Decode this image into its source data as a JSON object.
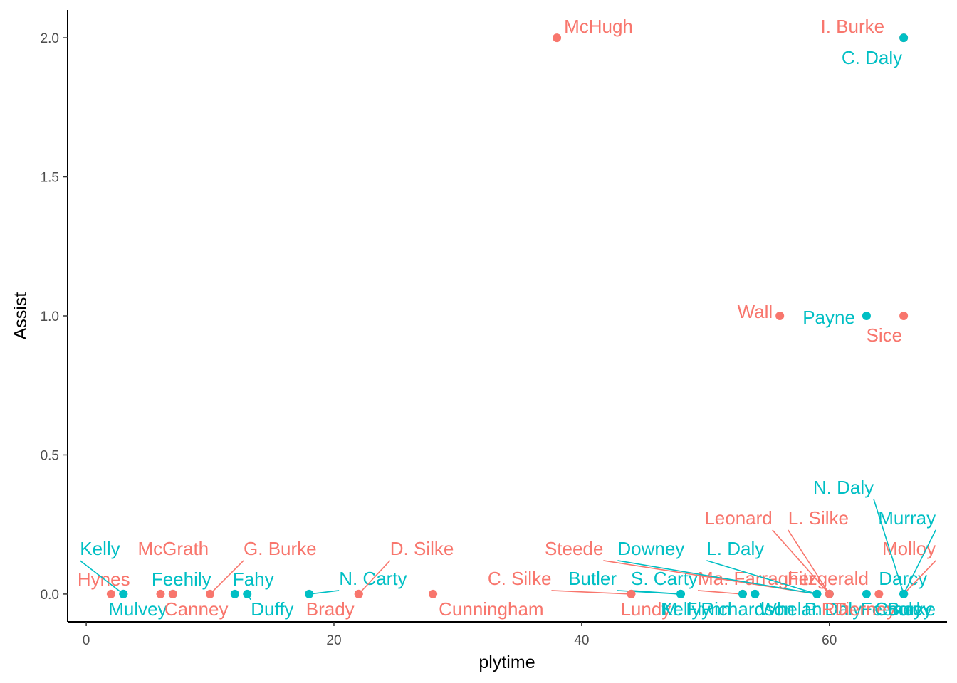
{
  "chart_data": {
    "type": "scatter",
    "xlabel": "plytime",
    "ylabel": "Assist",
    "xlim": [
      -1.5,
      69.5
    ],
    "ylim": [
      -0.1,
      2.1
    ],
    "xticks": [
      0,
      20,
      40,
      60
    ],
    "yticks": [
      0.0,
      0.5,
      1.0,
      1.5,
      2.0
    ],
    "xtick_labels": [
      "0",
      "20",
      "40",
      "60"
    ],
    "ytick_labels": [
      "0.0",
      "0.5",
      "1.0",
      "1.5",
      "2.0"
    ],
    "grid": false,
    "legend": "none",
    "colors": [
      "#F8766D",
      "#00BFC4"
    ],
    "points": [
      {
        "name": "McHugh",
        "x": 38,
        "y": 2,
        "g": 0
      },
      {
        "name": "I. Burke",
        "x": 66,
        "y": 2,
        "g": 0
      },
      {
        "name": "C. Daly",
        "x": 66,
        "y": 2,
        "g": 1
      },
      {
        "name": "Wall",
        "x": 56,
        "y": 1,
        "g": 0
      },
      {
        "name": "Payne",
        "x": 63,
        "y": 1,
        "g": 1
      },
      {
        "name": "Sice",
        "x": 66,
        "y": 1,
        "g": 0
      },
      {
        "name": "Hynes",
        "x": 2,
        "y": 0,
        "g": 0
      },
      {
        "name": "Kelly",
        "x": 3,
        "y": 0,
        "g": 1
      },
      {
        "name": "Mulvey",
        "x": 3,
        "y": 0,
        "g": 1
      },
      {
        "name": "McGrath",
        "x": 6,
        "y": 0,
        "g": 0
      },
      {
        "name": "Feehily",
        "x": 7,
        "y": 0,
        "g": 1
      },
      {
        "name": "Canney",
        "x": 7,
        "y": 0,
        "g": 0
      },
      {
        "name": "G. Burke",
        "x": 10,
        "y": 0,
        "g": 0
      },
      {
        "name": "Fahy",
        "x": 12,
        "y": 0,
        "g": 1
      },
      {
        "name": "Duffy",
        "x": 13,
        "y": 0,
        "g": 1
      },
      {
        "name": "N. Carty",
        "x": 18,
        "y": 0,
        "g": 1
      },
      {
        "name": "Brady",
        "x": 22,
        "y": 0,
        "g": 0
      },
      {
        "name": "D. Silke",
        "x": 22,
        "y": 0,
        "g": 0
      },
      {
        "name": "Cunningham",
        "x": 28,
        "y": 0,
        "g": 0
      },
      {
        "name": "C. Silke",
        "x": 44,
        "y": 0,
        "g": 0
      },
      {
        "name": "Lundy",
        "x": 44,
        "y": 0,
        "g": 0
      },
      {
        "name": "Butler",
        "x": 48,
        "y": 0,
        "g": 1
      },
      {
        "name": "S. Carty",
        "x": 48,
        "y": 0,
        "g": 1
      },
      {
        "name": "Kelly",
        "x": 48,
        "y": 0,
        "g": 1
      },
      {
        "name": "Ma. Farragher",
        "x": 53,
        "y": 0,
        "g": 0
      },
      {
        "name": "M.",
        "x": 53,
        "y": 0,
        "g": 1
      },
      {
        "name": "Flynn",
        "x": 54,
        "y": 0,
        "g": 1
      },
      {
        "name": "Richardson",
        "x": 54,
        "y": 0,
        "g": 1
      },
      {
        "name": "Steede",
        "x": 59,
        "y": 0,
        "g": 0
      },
      {
        "name": "Downey",
        "x": 59,
        "y": 0,
        "g": 1
      },
      {
        "name": "L. Daly",
        "x": 59,
        "y": 0,
        "g": 1
      },
      {
        "name": "Whelan",
        "x": 59,
        "y": 0,
        "g": 1
      },
      {
        "name": "Leonard",
        "x": 60,
        "y": 0,
        "g": 0
      },
      {
        "name": "L. Silke",
        "x": 60,
        "y": 0,
        "g": 0
      },
      {
        "name": "Fitzgerald",
        "x": 60,
        "y": 0,
        "g": 0
      },
      {
        "name": "P. Daly",
        "x": 60,
        "y": 0,
        "g": 1
      },
      {
        "name": "RD",
        "x": 60,
        "y": 0,
        "g": 0
      },
      {
        "name": "Feeney",
        "x": 63,
        "y": 0,
        "g": 1
      },
      {
        "name": "Tierney",
        "x": 64,
        "y": 0,
        "g": 0
      },
      {
        "name": "N. Daly",
        "x": 66,
        "y": 0,
        "g": 1
      },
      {
        "name": "Murray",
        "x": 66,
        "y": 0,
        "g": 1
      },
      {
        "name": "Molloy",
        "x": 66,
        "y": 0,
        "g": 0
      },
      {
        "name": "Darcy",
        "x": 66,
        "y": 0,
        "g": 1
      },
      {
        "name": "Burke",
        "x": 66,
        "y": 0,
        "g": 1
      },
      {
        "name": "Cooley",
        "x": 66,
        "y": 0,
        "g": 1
      }
    ]
  }
}
